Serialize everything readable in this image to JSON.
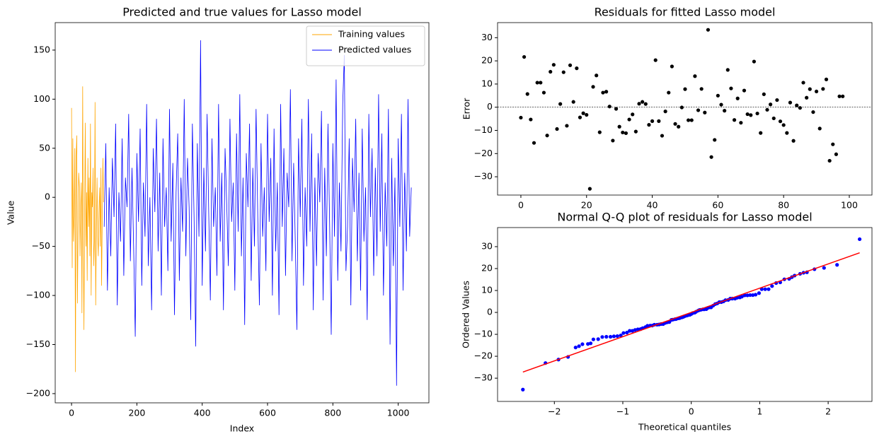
{
  "chart_data": [
    {
      "type": "line",
      "title": "Predicted and true values for Lasso model",
      "xlabel": "Index",
      "ylabel": "Value",
      "xlim": [
        -50,
        1094
      ],
      "ylim": [
        -209.4,
        178
      ],
      "xticks": [
        0,
        200,
        400,
        600,
        800,
        1000
      ],
      "yticks": [
        {
          "value": -200,
          "label": "−200"
        },
        {
          "value": -150,
          "label": "−150"
        },
        {
          "value": -100,
          "label": "−100"
        },
        {
          "value": -50,
          "label": "−50"
        },
        0,
        50,
        100,
        150
      ],
      "legend": "upper right",
      "series": [
        {
          "name": "Training values",
          "color": "orange",
          "x": [
            0,
            2,
            4,
            6,
            8,
            10,
            12,
            14,
            16,
            18,
            20,
            22,
            24,
            26,
            28,
            30,
            32,
            34,
            36,
            38,
            40,
            42,
            44,
            46,
            48,
            50,
            52,
            54,
            56,
            58,
            60,
            62,
            64,
            66,
            68,
            70,
            72,
            74,
            76,
            78,
            80,
            82,
            84,
            86,
            88,
            90,
            92,
            94,
            96,
            98
          ],
          "values": [
            91,
            -72,
            60,
            -45,
            -20,
            50,
            -178,
            40,
            63,
            -108,
            -30,
            25,
            10,
            -60,
            -10,
            15,
            -118,
            113,
            -40,
            -135,
            -20,
            76,
            -50,
            5,
            -85,
            40,
            -30,
            20,
            -60,
            75,
            -100,
            5,
            -10,
            30,
            -70,
            -45,
            97,
            -110,
            -30,
            20,
            -40,
            -60,
            -15,
            10,
            -50,
            30,
            -90,
            -20,
            40,
            -5
          ]
        },
        {
          "name": "Predicted values",
          "color": "blue",
          "x": [
            100,
            105,
            110,
            115,
            120,
            125,
            130,
            135,
            140,
            145,
            150,
            155,
            160,
            165,
            170,
            175,
            180,
            185,
            190,
            195,
            200,
            205,
            210,
            215,
            220,
            225,
            230,
            235,
            240,
            245,
            250,
            255,
            260,
            265,
            270,
            275,
            280,
            285,
            290,
            295,
            300,
            305,
            310,
            315,
            320,
            325,
            330,
            335,
            340,
            345,
            350,
            355,
            360,
            365,
            370,
            375,
            380,
            385,
            390,
            395,
            400,
            405,
            410,
            415,
            420,
            425,
            430,
            435,
            440,
            445,
            450,
            455,
            460,
            465,
            470,
            475,
            480,
            485,
            490,
            495,
            500,
            505,
            510,
            515,
            520,
            525,
            530,
            535,
            540,
            545,
            550,
            555,
            560,
            565,
            570,
            575,
            580,
            585,
            590,
            595,
            600,
            605,
            610,
            615,
            620,
            625,
            630,
            635,
            640,
            645,
            650,
            655,
            660,
            665,
            670,
            675,
            680,
            685,
            690,
            695,
            700,
            705,
            710,
            715,
            720,
            725,
            730,
            735,
            740,
            745,
            750,
            755,
            760,
            765,
            770,
            775,
            780,
            785,
            790,
            795,
            800,
            805,
            810,
            815,
            820,
            825,
            830,
            835,
            840,
            845,
            850,
            855,
            860,
            865,
            870,
            875,
            880,
            885,
            890,
            895,
            900,
            905,
            910,
            915,
            920,
            925,
            930,
            935,
            940,
            945,
            950,
            955,
            960,
            965,
            970,
            975,
            980,
            985,
            990,
            995,
            1000,
            1005,
            1010,
            1015,
            1020,
            1025,
            1030,
            1035,
            1040
          ],
          "values": [
            -30,
            55,
            -95,
            10,
            -60,
            40,
            -20,
            75,
            -110,
            5,
            -45,
            60,
            -80,
            20,
            -10,
            85,
            -65,
            30,
            -50,
            -142,
            45,
            -25,
            70,
            -90,
            15,
            -40,
            95,
            -70,
            0,
            -115,
            50,
            -15,
            80,
            -55,
            25,
            -100,
            60,
            -30,
            10,
            -75,
            90,
            -45,
            35,
            -120,
            5,
            65,
            -85,
            20,
            -35,
            100,
            -60,
            40,
            -10,
            -125,
            75,
            -20,
            -152,
            55,
            -40,
            160,
            -90,
            30,
            -55,
            85,
            -15,
            -105,
            60,
            -30,
            10,
            -80,
            95,
            -45,
            25,
            -115,
            50,
            -5,
            -70,
            80,
            -25,
            15,
            -95,
            65,
            -35,
            105,
            -60,
            20,
            -130,
            45,
            -10,
            75,
            -85,
            30,
            -50,
            90,
            -20,
            -110,
            55,
            -40,
            10,
            -75,
            85,
            -25,
            40,
            -100,
            70,
            -55,
            15,
            -120,
            95,
            -30,
            50,
            -80,
            25,
            -10,
            110,
            -65,
            35,
            -45,
            -135,
            60,
            -20,
            80,
            -90,
            10,
            -50,
            100,
            -35,
            65,
            -115,
            20,
            -70,
            45,
            -5,
            88,
            -105,
            30,
            -60,
            75,
            -25,
            -140,
            55,
            -40,
            120,
            -85,
            15,
            -55,
            95,
            145,
            -75,
            -30,
            60,
            -110,
            40,
            -15,
            80,
            -65,
            25,
            -95,
            70,
            -45,
            10,
            -125,
            85,
            -20,
            50,
            -80,
            30,
            -60,
            105,
            -35,
            65,
            -100,
            15,
            -50,
            90,
            -150,
            40,
            -70,
            20,
            -192,
            60,
            -30,
            85,
            -95,
            25,
            -55,
            100,
            -40,
            10
          ]
        }
      ]
    },
    {
      "type": "scatter",
      "title": "Residuals for fitted Lasso model",
      "ylabel": "Error",
      "color": "black",
      "xlim": [
        -7.1,
        106.9
      ],
      "ylim": [
        -37.9,
        36.5
      ],
      "xticks": [
        0,
        20,
        40,
        60,
        80,
        100
      ],
      "yticks": [
        {
          "value": -30,
          "label": "−30"
        },
        {
          "value": -20,
          "label": "−20"
        },
        {
          "value": -10,
          "label": "−10"
        },
        0,
        10,
        20,
        30
      ],
      "reference_line": 0,
      "x": [
        0,
        1,
        2,
        3,
        4,
        5,
        6,
        7,
        8,
        9,
        10,
        11,
        12,
        13,
        14,
        15,
        16,
        17,
        18,
        19,
        20,
        21,
        22,
        23,
        24,
        25,
        26,
        27,
        28,
        29,
        30,
        31,
        32,
        33,
        34,
        35,
        36,
        37,
        38,
        39,
        40,
        41,
        42,
        43,
        44,
        45,
        46,
        47,
        48,
        49,
        50,
        51,
        52,
        53,
        54,
        55,
        56,
        57,
        58,
        59,
        60,
        61,
        62,
        63,
        64,
        65,
        66,
        67,
        68,
        69,
        70,
        71,
        72,
        73,
        74,
        75,
        76,
        77,
        78,
        79,
        80,
        81,
        82,
        83,
        84,
        85,
        86,
        87,
        88,
        89,
        90,
        91,
        92,
        93,
        94,
        95,
        96,
        97,
        98
      ],
      "values": [
        -4.5,
        21.7,
        5.7,
        -5.3,
        -15.4,
        10.6,
        10.6,
        6.3,
        -12.2,
        15.3,
        18.3,
        -9.4,
        1.4,
        15.1,
        -8.0,
        18.1,
        2.3,
        16.8,
        -4.4,
        -2.6,
        -3.3,
        -35.2,
        8.8,
        13.7,
        -10.8,
        6.3,
        6.7,
        0.3,
        -14.4,
        -0.7,
        -8.4,
        -10.9,
        -11.2,
        -5.3,
        -3.1,
        -10.5,
        1.5,
        2.3,
        1.4,
        -7.6,
        -6.0,
        20.3,
        -6.0,
        -12.3,
        -1.8,
        6.3,
        17.6,
        -7.2,
        -8.4,
        -0.1,
        7.8,
        -5.6,
        -5.6,
        13.4,
        -1.3,
        7.9,
        -2.3,
        33.4,
        -21.5,
        -14.1,
        5.0,
        1.1,
        -1.5,
        16.1,
        8.1,
        -5.5,
        3.8,
        -6.7,
        7.2,
        -3.0,
        -3.4,
        19.7,
        -2.7,
        -11.1,
        5.6,
        -1.1,
        1.2,
        -4.8,
        3.1,
        -6.1,
        -7.7,
        -11.1,
        2.0,
        -14.5,
        0.8,
        -0.3,
        10.6,
        4.1,
        7.8,
        -2.1,
        6.8,
        -9.2,
        7.9,
        12.0,
        -23.1,
        -16.0,
        -20.3,
        4.7,
        4.7
      ]
    },
    {
      "type": "scatter",
      "title": "Normal Q-Q plot of residuals for Lasso model",
      "xlabel": "Theoretical quantiles",
      "ylabel": "Ordered Values",
      "xlim": [
        -2.83,
        2.64
      ],
      "ylim": [
        -40.6,
        38.7
      ],
      "xticks": [
        {
          "value": -2,
          "label": "−2"
        },
        {
          "value": -1,
          "label": "−1"
        },
        0,
        1,
        2
      ],
      "yticks": [
        {
          "value": -30,
          "label": "−30"
        },
        {
          "value": -20,
          "label": "−20"
        },
        {
          "value": -10,
          "label": "−10"
        },
        0,
        10,
        20,
        30
      ],
      "series": [
        {
          "color": "blue",
          "x": [
            -2.46,
            -2.13,
            -1.94,
            -1.8,
            -1.69,
            -1.64,
            -1.59,
            -1.51,
            -1.47,
            -1.43,
            -1.36,
            -1.3,
            -1.24,
            -1.18,
            -1.13,
            -1.08,
            -1.03,
            -0.99,
            -0.94,
            -0.9,
            -0.86,
            -0.82,
            -0.78,
            -0.74,
            -0.71,
            -0.67,
            -0.64,
            -0.6,
            -0.57,
            -0.54,
            -0.5,
            -0.47,
            -0.44,
            -0.41,
            -0.38,
            -0.35,
            -0.32,
            -0.29,
            -0.27,
            -0.24,
            -0.22,
            -0.19,
            -0.17,
            -0.14,
            -0.12,
            -0.1,
            -0.07,
            -0.05,
            -0.02,
            0,
            0.02,
            0.05,
            0.07,
            0.1,
            0.12,
            0.14,
            0.17,
            0.19,
            0.22,
            0.24,
            0.27,
            0.29,
            0.32,
            0.35,
            0.38,
            0.41,
            0.44,
            0.47,
            0.5,
            0.54,
            0.57,
            0.6,
            0.64,
            0.67,
            0.71,
            0.74,
            0.78,
            0.82,
            0.86,
            0.9,
            0.94,
            0.99,
            1.03,
            1.08,
            1.13,
            1.18,
            1.24,
            1.3,
            1.36,
            1.43,
            1.47,
            1.51,
            1.59,
            1.64,
            1.69,
            1.8,
            1.94,
            2.13,
            2.46
          ],
          "values": [
            -35.2,
            -23.1,
            -21.5,
            -20.3,
            -16.0,
            -15.4,
            -14.5,
            -14.4,
            -14.1,
            -12.3,
            -12.2,
            -11.2,
            -11.1,
            -11.1,
            -10.9,
            -10.8,
            -10.5,
            -9.4,
            -9.2,
            -8.4,
            -8.4,
            -8.0,
            -7.7,
            -7.6,
            -7.2,
            -6.7,
            -6.1,
            -6.0,
            -6.0,
            -5.6,
            -5.6,
            -5.5,
            -5.3,
            -5.3,
            -4.8,
            -4.5,
            -4.4,
            -3.4,
            -3.3,
            -3.1,
            -3.0,
            -2.7,
            -2.6,
            -2.3,
            -2.1,
            -1.8,
            -1.5,
            -1.3,
            -1.1,
            -0.7,
            -0.3,
            -0.1,
            0.3,
            0.8,
            1.1,
            1.2,
            1.4,
            1.4,
            1.5,
            2.0,
            2.3,
            2.3,
            3.1,
            3.8,
            4.1,
            4.7,
            4.7,
            5.0,
            5.6,
            5.7,
            6.3,
            6.3,
            6.3,
            6.7,
            6.8,
            7.2,
            7.8,
            7.8,
            7.9,
            7.9,
            8.1,
            8.8,
            10.6,
            10.6,
            10.6,
            12.0,
            13.4,
            13.7,
            15.1,
            15.3,
            16.1,
            16.8,
            17.6,
            18.1,
            18.3,
            19.7,
            20.3,
            21.7,
            33.4
          ]
        }
      ],
      "fit_line": {
        "color": "red",
        "x": [
          -2.46,
          2.46
        ],
        "values": [
          -27.2,
          27.2
        ]
      }
    }
  ]
}
